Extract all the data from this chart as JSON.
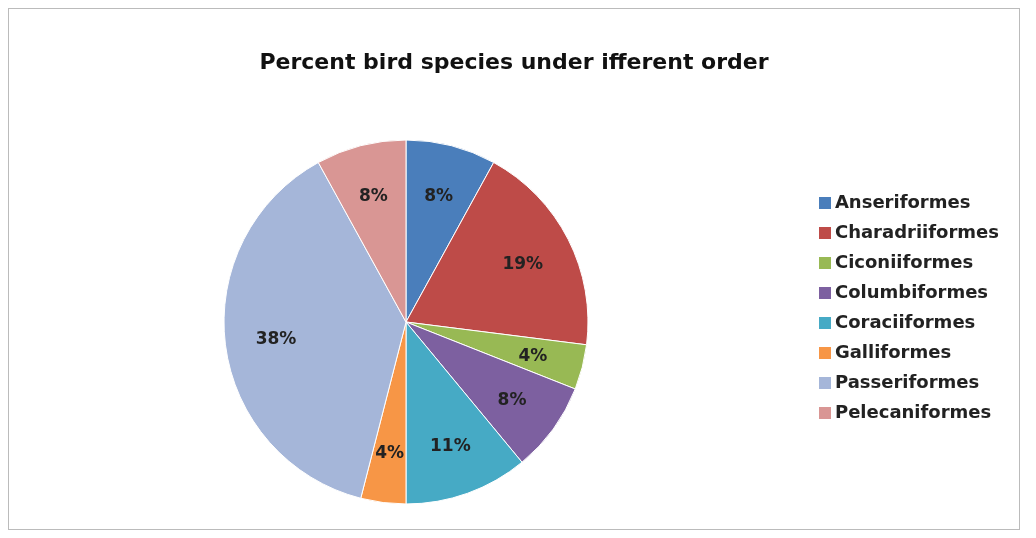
{
  "chart_data": {
    "type": "pie",
    "title": "Percent bird species under ifferent order",
    "categories": [
      "Anseriformes",
      "Charadriiformes",
      "Ciconiiformes",
      "Columbiformes",
      "Coraciiformes",
      "Galliformes",
      "Passeriformes",
      "Pelecaniformes"
    ],
    "values": [
      8,
      19,
      4,
      8,
      11,
      4,
      38,
      8
    ],
    "value_labels": [
      "8%",
      "19%",
      "4%",
      "8%",
      "11%",
      "4%",
      "38%",
      "8%"
    ],
    "colors": [
      "#4a7ebb",
      "#be4b48",
      "#98b954",
      "#7d60a0",
      "#46aac5",
      "#f79646",
      "#a5b6d9",
      "#d99694"
    ],
    "legend": "right"
  }
}
